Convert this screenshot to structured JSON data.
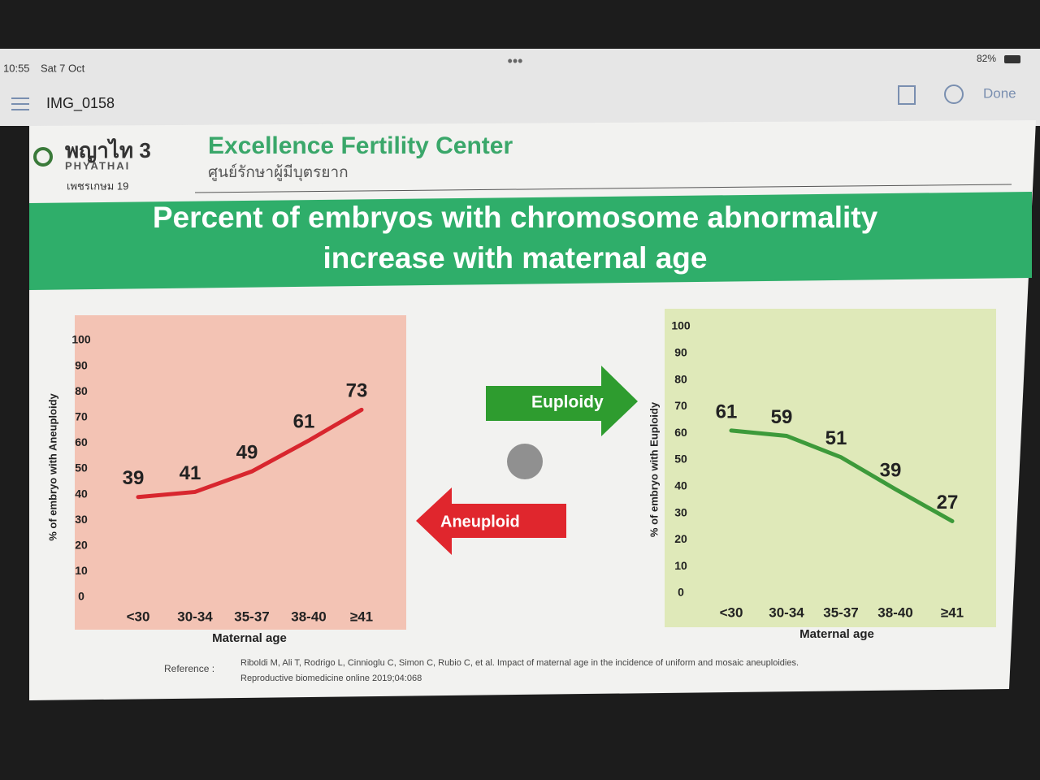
{
  "status_bar": {
    "time": "10:55",
    "date": "Sat 7 Oct",
    "battery": "82%"
  },
  "toolbar": {
    "file_name": "IMG_0158",
    "done": "Done"
  },
  "slide": {
    "logo": {
      "name": "พญาไท 3",
      "brand": "PHYATHAI",
      "branch": "เพชรเกษม 19"
    },
    "header": {
      "title": "Excellence Fertility Center",
      "subtitle": "ศูนย์รักษาผู้มีบุตรยาก"
    },
    "title_lines": [
      "Percent of embryos with chromosome abnormality",
      "increase with maternal age"
    ],
    "arrows": {
      "euploidy": "Euploidy",
      "aneuploid": "Aneuploid"
    },
    "reference": {
      "label": "Reference :",
      "lines": [
        "Riboldi M, Ali T, Rodrigo L, Cinnioglu C, Simon C, Rubio C, et al. Impact of maternal age in the incidence of uniform and mosaic aneuploidies.",
        "Reproductive biomedicine online 2019;04:068"
      ]
    }
  },
  "chart_data": [
    {
      "type": "line",
      "y_label": "% of embryo with Aneuploidy",
      "x_label": "Maternal age",
      "categories": [
        "<30",
        "30-34",
        "35-37",
        "38-40",
        "≥41"
      ],
      "values": [
        39,
        41,
        49,
        61,
        73
      ],
      "color": "#d8262e",
      "ylim": [
        0,
        100
      ],
      "yticks": [
        0,
        10,
        20,
        30,
        40,
        50,
        60,
        70,
        80,
        90,
        100
      ]
    },
    {
      "type": "line",
      "y_label": "% of embryo with Euploidy",
      "x_label": "Maternal age",
      "categories": [
        "<30",
        "30-34",
        "35-37",
        "38-40",
        "≥41"
      ],
      "values": [
        61,
        59,
        51,
        39,
        27
      ],
      "color": "#3d9a3a",
      "ylim": [
        0,
        100
      ],
      "yticks": [
        0,
        10,
        20,
        30,
        40,
        50,
        60,
        70,
        80,
        90,
        100
      ]
    }
  ]
}
